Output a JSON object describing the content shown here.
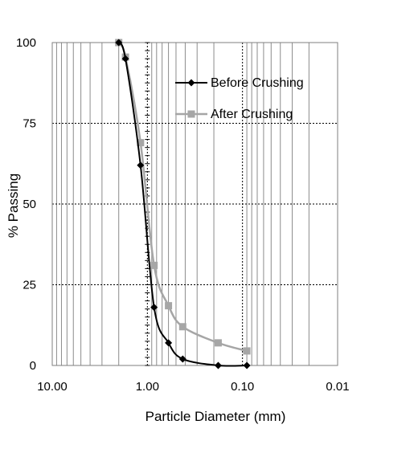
{
  "chart_data": {
    "type": "line",
    "xlabel": "Particle Diameter (mm)",
    "ylabel": "% Passing",
    "x_scale": "log",
    "x_reversed": true,
    "xlim": [
      10,
      0.01
    ],
    "ylim": [
      0,
      100
    ],
    "x_ticks": [
      10,
      1,
      0.1,
      0.01
    ],
    "x_tick_labels": [
      "10.00",
      "1.00",
      "0.10",
      "0.01"
    ],
    "y_ticks": [
      0,
      25,
      50,
      75,
      100
    ],
    "y_tick_labels": [
      "0",
      "25",
      "50",
      "75",
      "100"
    ],
    "grid": true,
    "legend_position": "top-right",
    "series": [
      {
        "name": "Before Crushing",
        "color": "#000000",
        "marker": "diamond",
        "x": [
          2.0,
          1.7,
          1.18,
          0.85,
          0.6,
          0.425,
          0.18,
          0.09
        ],
        "y": [
          100,
          95,
          62,
          18,
          7,
          2,
          0,
          0
        ]
      },
      {
        "name": "After Crushing",
        "color": "#a6a6a6",
        "marker": "square",
        "x": [
          2.0,
          1.7,
          1.18,
          0.85,
          0.6,
          0.425,
          0.18,
          0.09
        ],
        "y": [
          100,
          95.5,
          69,
          31,
          18.5,
          12,
          7,
          4.5
        ]
      }
    ]
  }
}
